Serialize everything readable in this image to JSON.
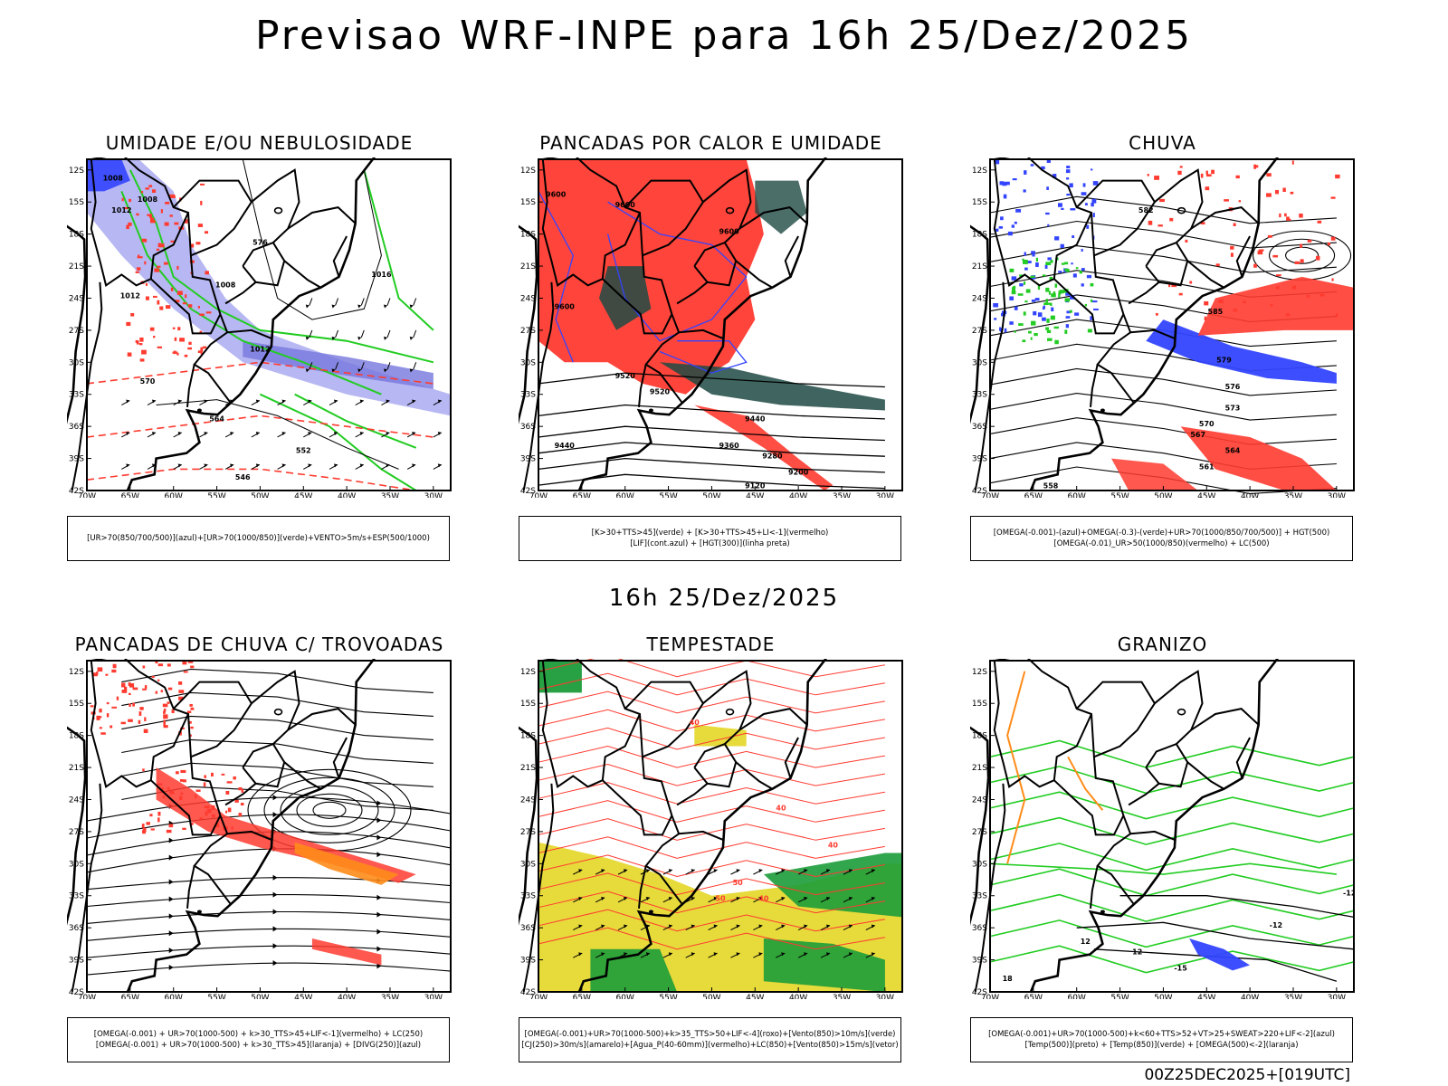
{
  "header": {
    "title": "Previsao WRF-INPE  para 16h 25/Dez/2025"
  },
  "mid_time": "16h 25/Dez/2025",
  "run_label": "00Z25DEC2025+[019UTC]",
  "axes": {
    "lat_labels": [
      "12S",
      "15S",
      "18S",
      "21S",
      "24S",
      "27S",
      "30S",
      "33S",
      "36S",
      "39S",
      "42S"
    ],
    "lon_labels": [
      "70W",
      "65W",
      "60W",
      "55W",
      "50W",
      "45W",
      "40W",
      "35W",
      "30W"
    ]
  },
  "colors": {
    "red": "#ff3b30",
    "green": "#22cc22",
    "blue": "#3344ff",
    "lavender": "#9999ee",
    "darkteal": "#1e4a44",
    "yellow": "#e6d830",
    "orange": "#ff8c1a"
  },
  "panels": [
    {
      "id": "umidade",
      "title": "UMIDADE E/OU NEBULOSIDADE",
      "legend": [
        "[UR>70(850/700/500)](azul)+[UR>70(1000/850)](verde)+VENTO>5m/s+ESP(500/1000)"
      ],
      "contour_labels": [
        "1008",
        "1008",
        "1008",
        "1012",
        "1012",
        "1012",
        "1016",
        "570",
        "576",
        "564",
        "552",
        "546"
      ]
    },
    {
      "id": "pancadas-calor",
      "title": "PANCADAS POR CALOR E UMIDADE",
      "legend": [
        "[K>30+TTS>45](verde) + [K>30+TTS>45+LI<-1](vermelho)",
        "[LIF](cont.azul) + [HGT(300)](linha preta)"
      ],
      "contour_labels": [
        "9600",
        "9600",
        "9600",
        "9600",
        "9520",
        "9520",
        "9440",
        "9440",
        "9360",
        "9280",
        "9200",
        "9120"
      ]
    },
    {
      "id": "chuva",
      "title": "CHUVA",
      "legend": [
        "[OMEGA(-0.001)-(azul)+OMEGA(-0.3)-(verde)+UR>70(1000/850/700/500)] + HGT(500)",
        "[OMEGA(-0.01)_UR>50(1000/850)(vermelho) + LC(500)"
      ],
      "contour_labels": [
        "582",
        "585",
        "579",
        "576",
        "573",
        "570",
        "567",
        "564",
        "561",
        "558"
      ]
    },
    {
      "id": "trovoadas",
      "title": "PANCADAS DE CHUVA C/ TROVOADAS",
      "legend": [
        "[OMEGA(-0.001) + UR>70(1000-500) + k>30_TTS>45+LIF<-1](vermelho) + LC(250)",
        "[OMEGA(-0.001) + UR>70(1000-500) + k>30_TTS>45](laranja) + [DIVG(250)](azul)"
      ],
      "contour_labels": []
    },
    {
      "id": "tempestade",
      "title": "TEMPESTADE",
      "legend": [
        "[OMEGA(-0.001)+UR>70(1000-500)+k>35_TTS>50+LIF<-4](roxo)+[Vento(850)>10m/s](verde)",
        "[CJ(250)>30m/s](amarelo)+[Agua_P(40-60mm)](vermelho)+LC(850)+[Vento(850)>15m/s](vetor)"
      ],
      "contour_labels": [
        "40",
        "40",
        "40",
        "50",
        "50",
        "40"
      ]
    },
    {
      "id": "granizo",
      "title": "GRANIZO",
      "legend": [
        "[OMEGA(-0.001)+UR>70(1000-500)+k<60+TTS>52+VT>25+SWEAT>220+LIF<-2](azul)",
        "[Temp(500)](preto) + [Temp(850)](verde) + [OMEGA(500)<-2](laranja)"
      ],
      "contour_labels": [
        "-12",
        "-12",
        "-15",
        "12",
        "12",
        "18"
      ]
    }
  ]
}
